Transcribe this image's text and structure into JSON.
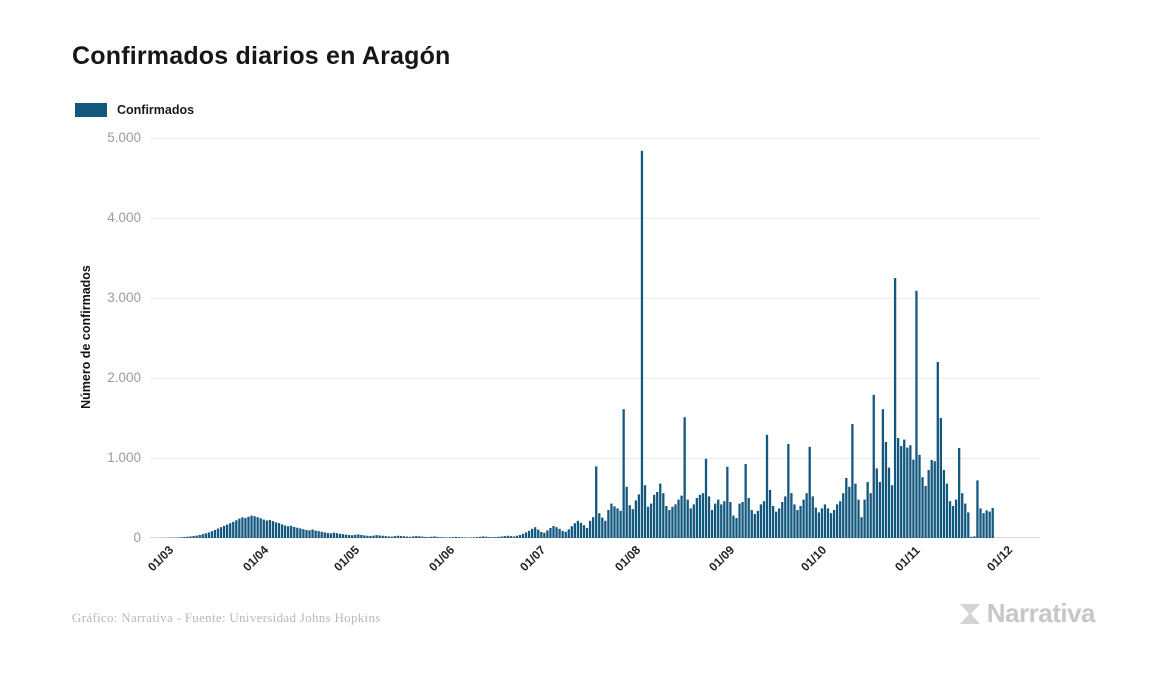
{
  "title": "Confirmados diarios en Aragón",
  "legend": {
    "label": "Confirmados",
    "color": "#13587F"
  },
  "y_axis": {
    "title": "Número de confirmados",
    "tick_labels": [
      "5.000",
      "4.000",
      "3.000",
      "2.000",
      "1.000",
      "0"
    ],
    "max": 5000
  },
  "x_axis": {
    "tick_labels": [
      "01/03",
      "01/04",
      "01/05",
      "01/06",
      "01/07",
      "01/08",
      "01/09",
      "01/10",
      "01/11",
      "01/12"
    ]
  },
  "footer": {
    "credit": "Gráfico: Narrativa - Fuente: Universidad Johns Hopkins",
    "brand": "Narrativa"
  },
  "colors": {
    "bar": "#13587F",
    "grid": "#ececec",
    "axis_line": "#d9d9d9",
    "ytick_text": "#9b9b9b",
    "xtick_text": "#222222",
    "brand_gray": "#c7c7c7",
    "brand_mark": "#d4d4d4"
  },
  "chart_data": {
    "type": "bar",
    "title": "Confirmados diarios en Aragón",
    "xlabel": "",
    "ylabel": "Número de confirmados",
    "ylim": [
      0,
      5000
    ],
    "grid": true,
    "legend_position": "top-left",
    "series_name": "Confirmados",
    "x_unit": "day",
    "x_tick_labels": [
      "01/03",
      "01/04",
      "01/05",
      "01/06",
      "01/07",
      "01/08",
      "01/09",
      "01/10",
      "01/11",
      "01/12"
    ],
    "month_tick_day_offsets": [
      0,
      31,
      61,
      92,
      122,
      153,
      184,
      214,
      245,
      275
    ],
    "n_points": 275,
    "values": [
      0,
      0,
      1,
      1,
      2,
      3,
      4,
      6,
      9,
      12,
      16,
      20,
      25,
      30,
      38,
      48,
      58,
      70,
      85,
      100,
      118,
      135,
      152,
      168,
      185,
      202,
      222,
      242,
      258,
      250,
      266,
      280,
      272,
      260,
      246,
      230,
      218,
      226,
      212,
      196,
      186,
      170,
      156,
      146,
      152,
      138,
      128,
      120,
      110,
      100,
      96,
      106,
      92,
      86,
      78,
      70,
      62,
      58,
      66,
      60,
      52,
      48,
      42,
      38,
      34,
      40,
      45,
      38,
      32,
      28,
      25,
      30,
      36,
      32,
      28,
      24,
      20,
      18,
      24,
      28,
      25,
      22,
      18,
      15,
      20,
      26,
      22,
      18,
      14,
      12,
      16,
      20,
      14,
      10,
      8,
      6,
      9,
      12,
      15,
      11,
      8,
      6,
      4,
      5,
      8,
      12,
      16,
      20,
      16,
      12,
      9,
      11,
      15,
      19,
      24,
      28,
      24,
      20,
      28,
      38,
      52,
      70,
      90,
      115,
      135,
      105,
      75,
      65,
      95,
      125,
      150,
      135,
      115,
      88,
      78,
      108,
      148,
      185,
      215,
      190,
      160,
      125,
      215,
      260,
      895,
      310,
      255,
      215,
      350,
      430,
      395,
      370,
      340,
      1610,
      640,
      410,
      360,
      470,
      545,
      4840,
      660,
      390,
      430,
      540,
      575,
      680,
      560,
      400,
      350,
      390,
      420,
      480,
      530,
      1510,
      480,
      370,
      420,
      500,
      540,
      560,
      990,
      520,
      350,
      430,
      480,
      420,
      460,
      890,
      450,
      280,
      250,
      430,
      450,
      925,
      500,
      350,
      300,
      340,
      420,
      460,
      1290,
      600,
      400,
      330,
      370,
      450,
      520,
      1175,
      560,
      420,
      350,
      400,
      480,
      560,
      1140,
      520,
      380,
      320,
      370,
      420,
      370,
      310,
      350,
      420,
      460,
      560,
      750,
      640,
      1425,
      680,
      480,
      260,
      480,
      700,
      560,
      1790,
      870,
      700,
      1610,
      1200,
      880,
      660,
      3250,
      1250,
      1150,
      1230,
      1130,
      1160,
      980,
      3090,
      1040,
      760,
      650,
      850,
      975,
      960,
      2200,
      1500,
      850,
      680,
      460,
      400,
      480,
      1125,
      560,
      430,
      320,
      15,
      20,
      720,
      370,
      310,
      345,
      330,
      375
    ]
  }
}
